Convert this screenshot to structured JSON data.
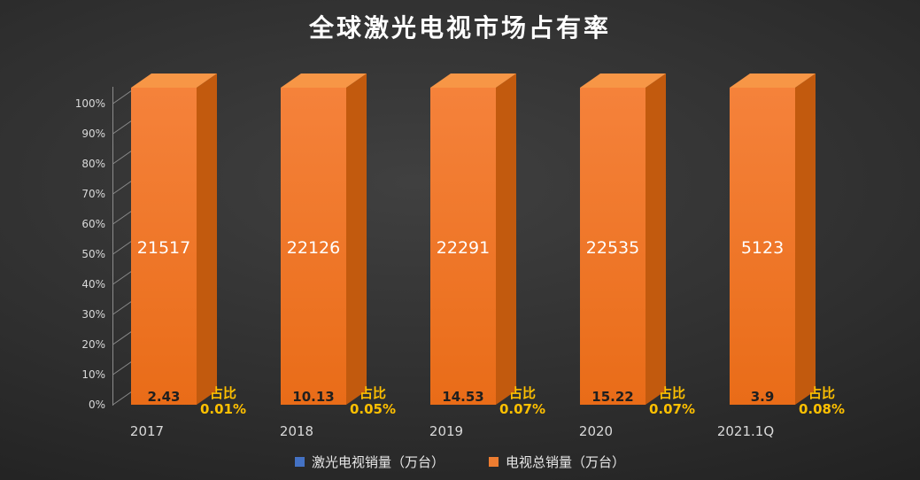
{
  "title": "全球激光电视市场占有率",
  "chart_data": {
    "type": "bar",
    "subtype": "3d-percent-stacked-column",
    "title": "全球激光电视市场占有率",
    "categories": [
      "2017",
      "2018",
      "2019",
      "2020",
      "2021.1Q"
    ],
    "series": [
      {
        "name": "激光电视销量（万台）",
        "color": "#4472C4",
        "values": [
          2.43,
          10.13,
          14.53,
          15.22,
          3.9
        ]
      },
      {
        "name": "电视总销量（万台）",
        "color": "#ED7D31",
        "values": [
          21517,
          22126,
          22291,
          22535,
          5123
        ]
      }
    ],
    "share_annotations": {
      "prefix": "占比",
      "values": [
        "0.01%",
        "0.05%",
        "0.07%",
        "0.07%",
        "0.08%"
      ]
    },
    "y_ticks": [
      "0%",
      "10%",
      "20%",
      "30%",
      "40%",
      "50%",
      "60%",
      "70%",
      "80%",
      "90%",
      "100%"
    ],
    "ylim": [
      0,
      100
    ],
    "grid": false,
    "legend_position": "bottom"
  },
  "colors": {
    "bar_front_light": "#F5823B",
    "bar_front_dark": "#E96C18",
    "bar_top": "#F79646",
    "bar_side": "#C25A0E",
    "axis": "#8C8C8C",
    "tick_label": "#D9D9D9",
    "value_label": "#FFFFFF",
    "laser_label": "#1F1F1F",
    "share_label": "#FFC000",
    "title": "#FFFFFF"
  }
}
